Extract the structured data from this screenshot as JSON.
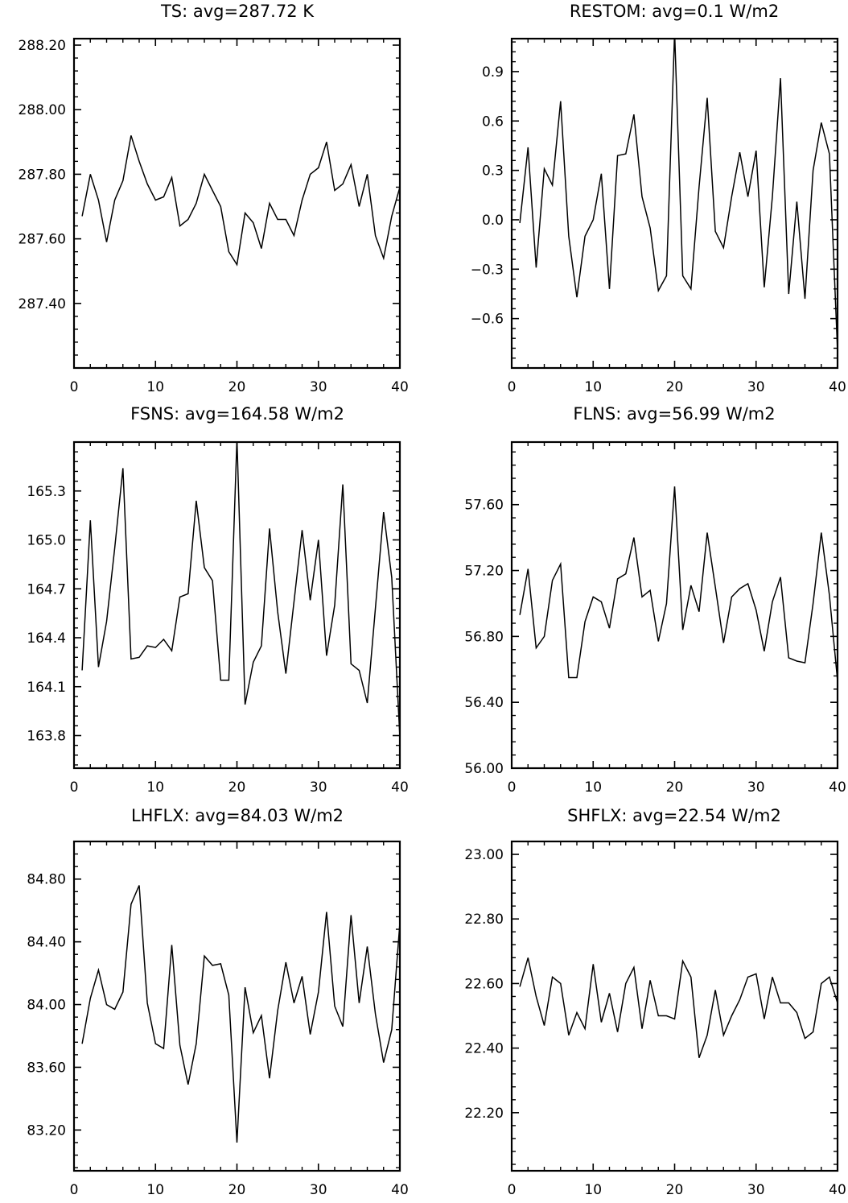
{
  "chart_data": [
    {
      "type": "line",
      "title": "TS: avg=287.72 K",
      "xlim": [
        0,
        40
      ],
      "ylim": [
        287.2,
        288.22
      ],
      "xticks": [
        0,
        10,
        20,
        30,
        40
      ],
      "xtick_labels": [
        "0",
        "10",
        "20",
        "30",
        "40"
      ],
      "yticks": [
        287.4,
        287.6,
        287.8,
        288.0,
        288.2
      ],
      "ytick_labels": [
        "287.40",
        "287.60",
        "287.80",
        "288.00",
        "288.20"
      ],
      "yminor": 0.04,
      "x": [
        1,
        2,
        3,
        4,
        5,
        6,
        7,
        8,
        9,
        10,
        11,
        12,
        13,
        14,
        15,
        16,
        17,
        18,
        19,
        20,
        21,
        22,
        23,
        24,
        25,
        26,
        27,
        28,
        29,
        30,
        31,
        32,
        33,
        34,
        35,
        36,
        37,
        38,
        39,
        40
      ],
      "values": [
        287.67,
        287.8,
        287.72,
        287.59,
        287.72,
        287.78,
        287.92,
        287.84,
        287.77,
        287.72,
        287.73,
        287.79,
        287.64,
        287.66,
        287.71,
        287.8,
        287.75,
        287.7,
        287.56,
        287.52,
        287.68,
        287.65,
        287.57,
        287.71,
        287.66,
        287.66,
        287.61,
        287.72,
        287.8,
        287.82,
        287.9,
        287.75,
        287.77,
        287.83,
        287.7,
        287.8,
        287.61,
        287.54,
        287.67,
        287.76
      ]
    },
    {
      "type": "line",
      "title": "RESTOM: avg=0.1 W/m2",
      "xlim": [
        0,
        40
      ],
      "ylim": [
        -0.9,
        1.1
      ],
      "xticks": [
        0,
        10,
        20,
        30,
        40
      ],
      "xtick_labels": [
        "0",
        "10",
        "20",
        "30",
        "40"
      ],
      "yticks": [
        -0.6,
        -0.3,
        0.0,
        0.3,
        0.6,
        0.9
      ],
      "ytick_labels": [
        "−0.6",
        "−0.3",
        "0.0",
        "0.3",
        "0.6",
        "0.9"
      ],
      "yminor": 0.06,
      "x": [
        1,
        2,
        3,
        4,
        5,
        6,
        7,
        8,
        9,
        10,
        11,
        12,
        13,
        14,
        15,
        16,
        17,
        18,
        19,
        20,
        21,
        22,
        23,
        24,
        25,
        26,
        27,
        28,
        29,
        30,
        31,
        32,
        33,
        34,
        35,
        36,
        37,
        38,
        39,
        40
      ],
      "values": [
        -0.02,
        0.44,
        -0.29,
        0.31,
        0.21,
        0.72,
        -0.1,
        -0.47,
        -0.1,
        0.0,
        0.28,
        -0.42,
        0.39,
        0.4,
        0.64,
        0.14,
        -0.05,
        -0.43,
        -0.34,
        1.14,
        -0.34,
        -0.42,
        0.2,
        0.74,
        -0.07,
        -0.17,
        0.14,
        0.41,
        0.14,
        0.42,
        -0.41,
        0.14,
        0.86,
        -0.45,
        0.11,
        -0.48,
        0.3,
        0.59,
        0.4,
        -0.8
      ]
    },
    {
      "type": "line",
      "title": "FSNS: avg=164.58 W/m2",
      "xlim": [
        0,
        40
      ],
      "ylim": [
        163.6,
        165.6
      ],
      "xticks": [
        0,
        10,
        20,
        30,
        40
      ],
      "xtick_labels": [
        "0",
        "10",
        "20",
        "30",
        "40"
      ],
      "yticks": [
        163.8,
        164.1,
        164.4,
        164.7,
        165.0,
        165.3
      ],
      "ytick_labels": [
        "163.8",
        "164.1",
        "164.4",
        "164.7",
        "165.0",
        "165.3"
      ],
      "yminor": 0.06,
      "x": [
        1,
        2,
        3,
        4,
        5,
        6,
        7,
        8,
        9,
        10,
        11,
        12,
        13,
        14,
        15,
        16,
        17,
        18,
        19,
        20,
        21,
        22,
        23,
        24,
        25,
        26,
        27,
        28,
        29,
        30,
        31,
        32,
        33,
        34,
        35,
        36,
        37,
        38,
        39,
        40
      ],
      "values": [
        164.2,
        165.12,
        164.22,
        164.5,
        164.95,
        165.44,
        164.27,
        164.28,
        164.35,
        164.34,
        164.39,
        164.32,
        164.65,
        164.67,
        165.24,
        164.83,
        164.75,
        164.14,
        164.14,
        165.62,
        163.99,
        164.25,
        164.35,
        165.07,
        164.56,
        164.18,
        164.62,
        165.06,
        164.63,
        165.0,
        164.29,
        164.6,
        165.34,
        164.24,
        164.2,
        164.0,
        164.58,
        165.17,
        164.77,
        163.79
      ]
    },
    {
      "type": "line",
      "title": "FLNS: avg=56.99 W/m2",
      "xlim": [
        0,
        40
      ],
      "ylim": [
        56.0,
        57.98
      ],
      "xticks": [
        0,
        10,
        20,
        30,
        40
      ],
      "xtick_labels": [
        "0",
        "10",
        "20",
        "30",
        "40"
      ],
      "yticks": [
        56.0,
        56.4,
        56.8,
        57.2,
        57.6
      ],
      "ytick_labels": [
        "56.00",
        "56.40",
        "56.80",
        "57.20",
        "57.60"
      ],
      "yminor": 0.08,
      "x": [
        1,
        2,
        3,
        4,
        5,
        6,
        7,
        8,
        9,
        10,
        11,
        12,
        13,
        14,
        15,
        16,
        17,
        18,
        19,
        20,
        21,
        22,
        23,
        24,
        25,
        26,
        27,
        28,
        29,
        30,
        31,
        32,
        33,
        34,
        35,
        36,
        37,
        38,
        39,
        40
      ],
      "values": [
        56.93,
        57.21,
        56.73,
        56.8,
        57.14,
        57.24,
        56.55,
        56.55,
        56.89,
        57.04,
        57.01,
        56.85,
        57.15,
        57.18,
        57.4,
        57.04,
        57.08,
        56.77,
        57.0,
        57.71,
        56.84,
        57.11,
        56.95,
        57.43,
        57.1,
        56.76,
        57.04,
        57.09,
        57.12,
        56.96,
        56.71,
        57.01,
        57.16,
        56.67,
        56.65,
        56.64,
        57.0,
        57.43,
        57.05,
        56.53
      ]
    },
    {
      "type": "line",
      "title": "LHFLX: avg=84.03 W/m2",
      "xlim": [
        0,
        40
      ],
      "ylim": [
        82.94,
        85.04
      ],
      "xticks": [
        0,
        10,
        20,
        30,
        40
      ],
      "xtick_labels": [
        "0",
        "10",
        "20",
        "30",
        "40"
      ],
      "yticks": [
        83.2,
        83.6,
        84.0,
        84.4,
        84.8
      ],
      "ytick_labels": [
        "83.20",
        "83.60",
        "84.00",
        "84.40",
        "84.80"
      ],
      "yminor": 0.08,
      "x": [
        1,
        2,
        3,
        4,
        5,
        6,
        7,
        8,
        9,
        10,
        11,
        12,
        13,
        14,
        15,
        16,
        17,
        18,
        19,
        20,
        21,
        22,
        23,
        24,
        25,
        26,
        27,
        28,
        29,
        30,
        31,
        32,
        33,
        34,
        35,
        36,
        37,
        38,
        39,
        40
      ],
      "values": [
        83.75,
        84.04,
        84.22,
        84.0,
        83.97,
        84.08,
        84.64,
        84.76,
        84.01,
        83.75,
        83.72,
        84.38,
        83.74,
        83.49,
        83.75,
        84.31,
        84.25,
        84.26,
        84.06,
        83.12,
        84.11,
        83.82,
        83.93,
        83.53,
        83.96,
        84.27,
        84.01,
        84.18,
        83.81,
        84.08,
        84.59,
        83.99,
        83.86,
        84.57,
        84.01,
        84.37,
        83.94,
        83.63,
        83.84,
        84.52
      ]
    },
    {
      "type": "line",
      "title": "SHFLX: avg=22.54 W/m2",
      "xlim": [
        0,
        40
      ],
      "ylim": [
        22.02,
        23.04
      ],
      "xticks": [
        0,
        10,
        20,
        30,
        40
      ],
      "xtick_labels": [
        "0",
        "10",
        "20",
        "30",
        "40"
      ],
      "yticks": [
        22.2,
        22.4,
        22.6,
        22.8,
        23.0
      ],
      "ytick_labels": [
        "22.20",
        "22.40",
        "22.60",
        "22.80",
        "23.00"
      ],
      "yminor": 0.04,
      "x": [
        1,
        2,
        3,
        4,
        5,
        6,
        7,
        8,
        9,
        10,
        11,
        12,
        13,
        14,
        15,
        16,
        17,
        18,
        19,
        20,
        21,
        22,
        23,
        24,
        25,
        26,
        27,
        28,
        29,
        30,
        31,
        32,
        33,
        34,
        35,
        36,
        37,
        38,
        39,
        40
      ],
      "values": [
        22.59,
        22.68,
        22.56,
        22.47,
        22.62,
        22.6,
        22.44,
        22.51,
        22.46,
        22.66,
        22.48,
        22.57,
        22.45,
        22.6,
        22.65,
        22.46,
        22.61,
        22.5,
        22.5,
        22.49,
        22.67,
        22.62,
        22.37,
        22.44,
        22.58,
        22.44,
        22.5,
        22.55,
        22.62,
        22.63,
        22.49,
        22.62,
        22.54,
        22.54,
        22.51,
        22.43,
        22.45,
        22.6,
        22.62,
        22.54
      ]
    }
  ]
}
